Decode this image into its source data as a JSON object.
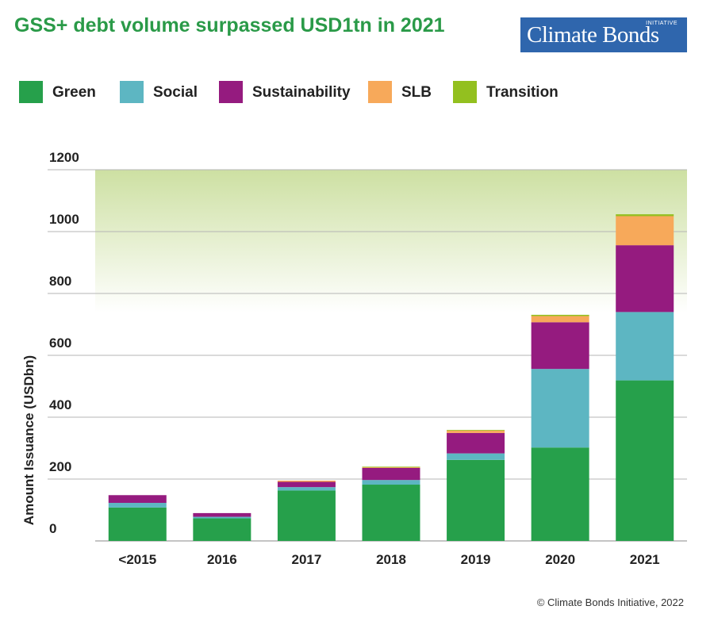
{
  "title": "GSS+ debt volume surpassed USD1tn in 2021",
  "logo": {
    "name": "Climate Bonds",
    "initiative": "INITIATIVE"
  },
  "legend": [
    {
      "label": "Green",
      "color": "#26a04b"
    },
    {
      "label": "Social",
      "color": "#5db6c2"
    },
    {
      "label": "Sustainability",
      "color": "#951b7f"
    },
    {
      "label": "SLB",
      "color": "#f7a95a"
    },
    {
      "label": "Transition",
      "color": "#93c01f"
    }
  ],
  "credit": "© Climate Bonds Initiative, 2022",
  "chart_data": {
    "type": "bar",
    "stacked": true,
    "title": "GSS+ debt volume surpassed USD1tn in 2021",
    "ylabel": "Amount Issuance (USDbn)",
    "xlabel": "",
    "ylim": [
      0,
      1200
    ],
    "yticks": [
      "0",
      "200",
      "400",
      "600",
      "800",
      "1000",
      "1200"
    ],
    "grid": true,
    "legend_position": "top",
    "categories": [
      "<2015",
      "2016",
      "2017",
      "2018",
      "2019",
      "2020",
      "2021"
    ],
    "series": [
      {
        "name": "Green",
        "color": "#26a04b",
        "values": [
          108,
          73,
          163,
          182,
          262,
          302,
          519
        ]
      },
      {
        "name": "Social",
        "color": "#5db6c2",
        "values": [
          15,
          5,
          11,
          15,
          21,
          254,
          221
        ]
      },
      {
        "name": "Sustainability",
        "color": "#951b7f",
        "values": [
          25,
          12,
          17,
          39,
          66,
          151,
          216
        ]
      },
      {
        "name": "SLB",
        "color": "#f7a95a",
        "values": [
          0,
          0,
          4,
          3,
          8,
          20,
          94
        ]
      },
      {
        "name": "Transition",
        "color": "#93c01f",
        "values": [
          0,
          0,
          0,
          1,
          2,
          4,
          6
        ]
      }
    ]
  }
}
